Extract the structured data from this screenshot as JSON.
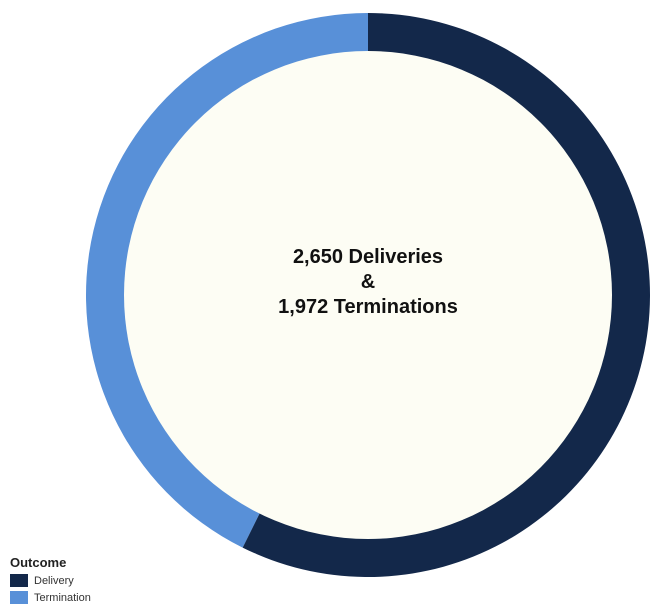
{
  "chart_data": {
    "type": "pie",
    "variant": "donut",
    "categories": [
      "Delivery",
      "Termination"
    ],
    "values": [
      2650,
      1972
    ],
    "colors": [
      "#13284a",
      "#5890d8"
    ],
    "center_bg": "#fdfdf4",
    "center_text": [
      "2,650 Deliveries",
      "&",
      "1,972 Terminations"
    ],
    "legend": {
      "title": "Outcome",
      "position": "bottom-left",
      "items": [
        {
          "label": "Delivery",
          "color": "#13284a"
        },
        {
          "label": "Termination",
          "color": "#5890d8"
        }
      ]
    }
  }
}
